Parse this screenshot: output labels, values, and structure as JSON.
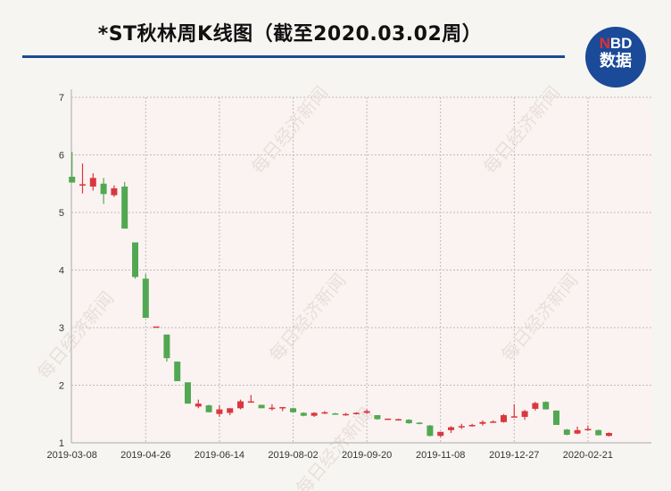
{
  "header": {
    "title": "*ST秋林周K线图（截至2020.03.02周）"
  },
  "logo": {
    "brand_n": "N",
    "brand_bd": "BD",
    "brand_cn": "数据"
  },
  "watermark": "每日经济新闻",
  "colors": {
    "up": "#d9373f",
    "down": "#52a852",
    "rule": "#1a4a94",
    "logo_bg": "#1b4a98"
  },
  "chart_data": {
    "type": "candlestick",
    "title": "*ST秋林周K线图（截至2020.03.02周）",
    "ylim": [
      1,
      7
    ],
    "yticks": [
      1,
      2,
      3,
      4,
      5,
      6,
      7
    ],
    "xticks": [
      "2019-03-08",
      "2019-04-26",
      "2019-06-14",
      "2019-08-02",
      "2019-09-20",
      "2019-11-08",
      "2019-12-27",
      "2020-02-21"
    ],
    "grid": true,
    "up_color": "red",
    "down_color": "green",
    "categories": [
      "2019-03-08",
      "2019-03-15",
      "2019-03-22",
      "2019-03-29",
      "2019-04-05",
      "2019-04-12",
      "2019-04-19",
      "2019-04-26",
      "2019-05-03",
      "2019-05-10",
      "2019-05-17",
      "2019-05-24",
      "2019-05-31",
      "2019-06-07",
      "2019-06-14",
      "2019-06-21",
      "2019-06-28",
      "2019-07-05",
      "2019-07-12",
      "2019-07-19",
      "2019-07-26",
      "2019-08-02",
      "2019-08-09",
      "2019-08-16",
      "2019-08-23",
      "2019-08-30",
      "2019-09-06",
      "2019-09-13",
      "2019-09-20",
      "2019-09-27",
      "2019-10-04",
      "2019-10-11",
      "2019-10-18",
      "2019-10-25",
      "2019-11-01",
      "2019-11-08",
      "2019-11-15",
      "2019-11-22",
      "2019-11-29",
      "2019-12-06",
      "2019-12-13",
      "2019-12-20",
      "2019-12-27",
      "2020-01-03",
      "2020-01-10",
      "2020-01-17",
      "2020-01-23",
      "2020-02-07",
      "2020-02-14",
      "2020-02-21",
      "2020-02-28",
      "2020-03-02"
    ],
    "ohlc": [
      [
        5.62,
        6.05,
        5.52,
        5.52
      ],
      [
        5.47,
        5.85,
        5.33,
        5.49
      ],
      [
        5.45,
        5.68,
        5.38,
        5.6
      ],
      [
        5.5,
        5.6,
        5.15,
        5.32
      ],
      [
        5.3,
        5.47,
        5.27,
        5.42
      ],
      [
        5.45,
        5.53,
        4.72,
        4.72
      ],
      [
        4.48,
        4.48,
        3.85,
        3.88
      ],
      [
        3.85,
        3.93,
        3.17,
        3.17
      ],
      [
        3.02,
        3.02,
        3.02,
        3.02
      ],
      [
        2.88,
        2.88,
        2.41,
        2.47
      ],
      [
        2.41,
        2.41,
        2.07,
        2.07
      ],
      [
        2.05,
        2.05,
        1.68,
        1.68
      ],
      [
        1.63,
        1.75,
        1.6,
        1.68
      ],
      [
        1.65,
        1.66,
        1.53,
        1.53
      ],
      [
        1.5,
        1.65,
        1.45,
        1.58
      ],
      [
        1.52,
        1.6,
        1.48,
        1.6
      ],
      [
        1.6,
        1.75,
        1.58,
        1.72
      ],
      [
        1.71,
        1.83,
        1.7,
        1.72
      ],
      [
        1.66,
        1.66,
        1.6,
        1.6
      ],
      [
        1.6,
        1.67,
        1.56,
        1.61
      ],
      [
        1.61,
        1.62,
        1.55,
        1.62
      ],
      [
        1.6,
        1.61,
        1.53,
        1.53
      ],
      [
        1.52,
        1.53,
        1.46,
        1.47
      ],
      [
        1.47,
        1.53,
        1.45,
        1.52
      ],
      [
        1.52,
        1.55,
        1.5,
        1.53
      ],
      [
        1.51,
        1.52,
        1.49,
        1.49
      ],
      [
        1.48,
        1.52,
        1.47,
        1.5
      ],
      [
        1.5,
        1.53,
        1.49,
        1.52
      ],
      [
        1.52,
        1.58,
        1.5,
        1.55
      ],
      [
        1.48,
        1.48,
        1.4,
        1.41
      ],
      [
        1.42,
        1.42,
        1.42,
        1.42
      ],
      [
        1.4,
        1.42,
        1.39,
        1.41
      ],
      [
        1.4,
        1.41,
        1.33,
        1.34
      ],
      [
        1.35,
        1.36,
        1.32,
        1.33
      ],
      [
        1.3,
        1.31,
        1.11,
        1.12
      ],
      [
        1.12,
        1.19,
        1.1,
        1.19
      ],
      [
        1.22,
        1.29,
        1.17,
        1.27
      ],
      [
        1.27,
        1.33,
        1.24,
        1.29
      ],
      [
        1.29,
        1.33,
        1.28,
        1.31
      ],
      [
        1.33,
        1.39,
        1.3,
        1.36
      ],
      [
        1.37,
        1.39,
        1.35,
        1.37
      ],
      [
        1.36,
        1.5,
        1.35,
        1.48
      ],
      [
        1.45,
        1.67,
        1.44,
        1.46
      ],
      [
        1.45,
        1.57,
        1.4,
        1.55
      ],
      [
        1.59,
        1.71,
        1.56,
        1.69
      ],
      [
        1.71,
        1.72,
        1.58,
        1.58
      ],
      [
        1.56,
        1.56,
        1.31,
        1.31
      ],
      [
        1.23,
        1.24,
        1.13,
        1.14
      ],
      [
        1.16,
        1.28,
        1.15,
        1.22
      ],
      [
        1.23,
        1.3,
        1.21,
        1.24
      ],
      [
        1.22,
        1.23,
        1.13,
        1.13
      ],
      [
        1.12,
        1.18,
        1.11,
        1.17
      ]
    ]
  }
}
